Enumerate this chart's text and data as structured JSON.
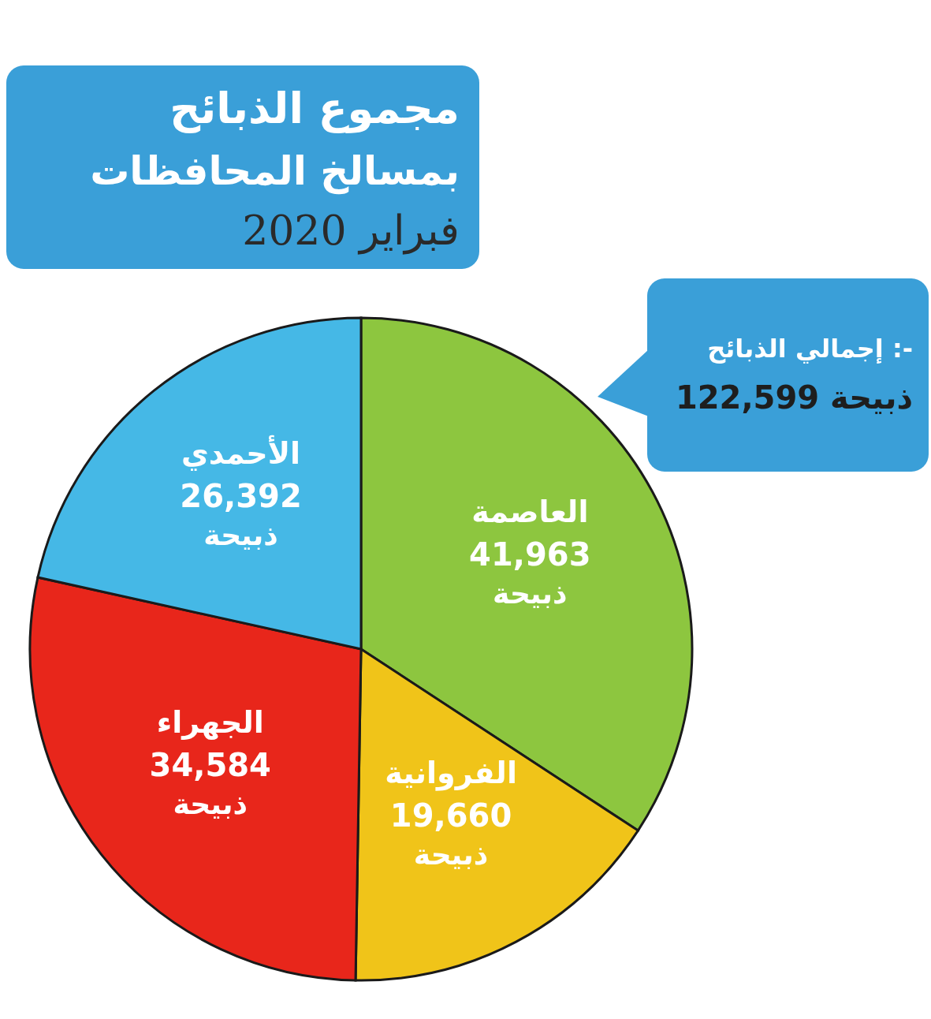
{
  "chart_data": {
    "type": "pie",
    "title": "مجموع الذبائح بمسالخ المحافظات",
    "subtitle": "فبراير 2020",
    "categories": [
      "العاصمة",
      "الفروانية",
      "الجهراء",
      "الأحمدي"
    ],
    "values": [
      41963,
      19660,
      34584,
      26392
    ],
    "colors": [
      "#8dc63f",
      "#f0c419",
      "#e8261b",
      "#45b8e6"
    ],
    "value_labels": [
      "41,963 ذبيحة",
      "19,660 ذبيحة",
      "34,584 ذبيحة",
      "26,392 ذبيحة"
    ],
    "annotations": [
      "إجمالي الذبائح :-",
      "122,599 ذبيحة"
    ]
  }
}
